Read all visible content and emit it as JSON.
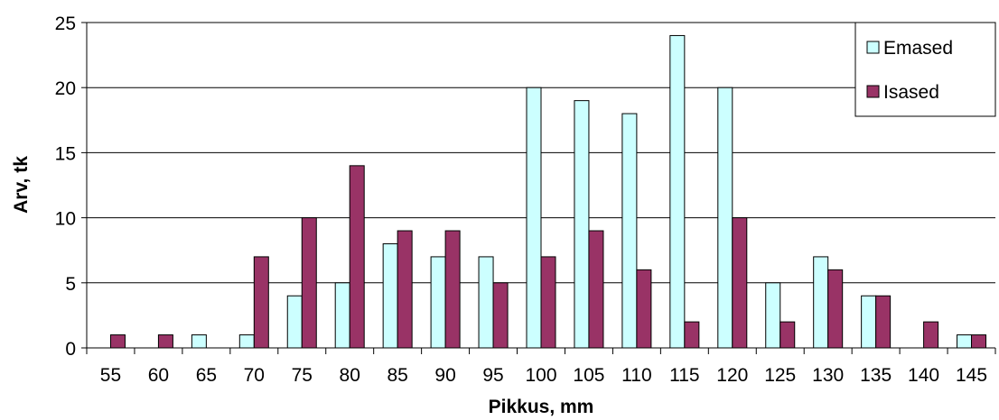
{
  "chart_data": {
    "type": "bar",
    "xlabel": "Pikkus, mm",
    "ylabel": "Arv, tk",
    "ylim": [
      0,
      25
    ],
    "yticks": [
      "0",
      "5",
      "10",
      "15",
      "20",
      "25"
    ],
    "grid": "horizontal",
    "legend_position": "top-right",
    "categories": [
      "55",
      "60",
      "65",
      "70",
      "75",
      "80",
      "85",
      "90",
      "95",
      "100",
      "105",
      "110",
      "115",
      "120",
      "125",
      "130",
      "135",
      "140",
      "145"
    ],
    "series": [
      {
        "name": "Emased",
        "color": "#ccffff",
        "values": [
          0,
          0,
          1,
          1,
          4,
          5,
          8,
          7,
          7,
          20,
          19,
          18,
          24,
          20,
          5,
          7,
          4,
          0,
          1
        ]
      },
      {
        "name": "Isased",
        "color": "#993366",
        "values": [
          1,
          1,
          0,
          7,
          10,
          14,
          9,
          9,
          5,
          7,
          9,
          6,
          2,
          10,
          2,
          6,
          4,
          2,
          1
        ]
      }
    ]
  }
}
